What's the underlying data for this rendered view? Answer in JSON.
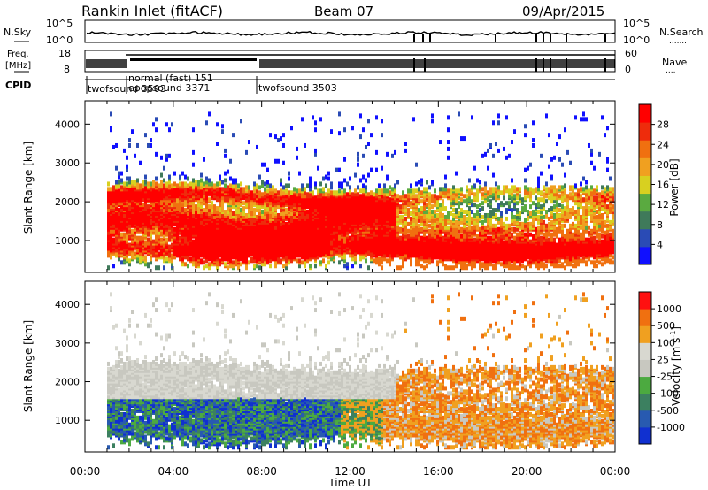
{
  "header": {
    "title": "Rankin Inlet (fitACF)",
    "beam": "Beam 07",
    "date": "09/Apr/2015"
  },
  "noise_panel": {
    "left_label": "N.Sky",
    "right_label": "N.Search",
    "left_ticks": [
      "10^5",
      "10^0"
    ],
    "right_ticks": [
      "10^5",
      "10^0"
    ]
  },
  "freq_panel": {
    "left_label_top": "Freq.",
    "left_label_unit": "[MHz]",
    "right_label": "Nave",
    "left_ticks": [
      "18",
      "8"
    ],
    "right_ticks": [
      "60",
      "0"
    ]
  },
  "cpid_panel": {
    "label": "CPID",
    "programs": [
      {
        "label": "twofsound 3503",
        "start": "00:24"
      },
      {
        "label": "normal (fast) 151",
        "start": "02:05"
      },
      {
        "label": "epopsound 3371",
        "start": "02:05"
      },
      {
        "label": "twofsound 3503",
        "start": "08:00"
      }
    ]
  },
  "chart_data": [
    {
      "type": "heatmap",
      "name": "power",
      "ylabel": "Slant Range [km]",
      "xlabel": "Time UT",
      "y_ticks": [
        1000,
        2000,
        3000,
        4000
      ],
      "ylim": [
        180,
        4600
      ],
      "x_ticks": [
        "00:00",
        "04:00",
        "08:00",
        "12:00",
        "16:00",
        "20:00",
        "00:00"
      ],
      "xlim_hours": [
        0,
        24
      ],
      "colorbar": {
        "title": "Power [dB]",
        "ticks": [
          "4",
          "8",
          "12",
          "16",
          "20",
          "24",
          "28"
        ],
        "colors": [
          "#1010ff",
          "#2a4bb5",
          "#3f7a5a",
          "#5aaa40",
          "#d8d020",
          "#f0a020",
          "#f07010",
          "#ee2c0c",
          "#ff0000"
        ]
      }
    },
    {
      "type": "heatmap",
      "name": "velocity",
      "ylabel": "Slant Range [km]",
      "xlabel": "Time UT",
      "y_ticks": [
        1000,
        2000,
        3000,
        4000
      ],
      "ylim": [
        180,
        4600
      ],
      "x_ticks": [
        "00:00",
        "04:00",
        "08:00",
        "12:00",
        "16:00",
        "20:00",
        "00:00"
      ],
      "xlim_hours": [
        0,
        24
      ],
      "colorbar": {
        "title": "Velocity [m s",
        "title_sup": "-1",
        "title_end": "]",
        "ticks": [
          "1000",
          "500",
          "100",
          "25",
          "-25",
          "-100",
          "-500",
          "-1000"
        ],
        "colors": [
          "#1030d0",
          "#285ab0",
          "#3c8060",
          "#4caa40",
          "#c8c8c0",
          "#d8d8d0",
          "#f0a020",
          "#f07010",
          "#ff1010"
        ]
      }
    }
  ],
  "x_axis": {
    "label": "Time UT",
    "ticks": [
      "00:00",
      "04:00",
      "08:00",
      "12:00",
      "16:00",
      "20:00",
      "00:00"
    ]
  }
}
